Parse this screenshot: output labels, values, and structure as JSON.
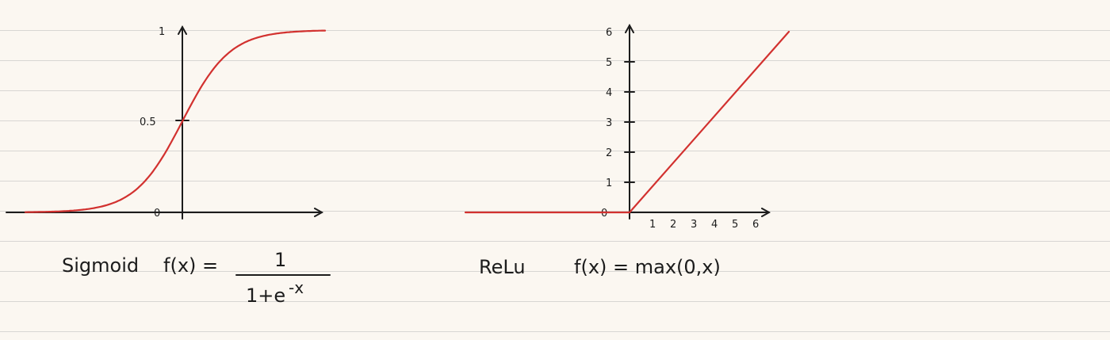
{
  "colors": {
    "curve": "#d2312f",
    "axis": "#1c1c1c",
    "paper": "#fbf7f1",
    "rule": "#d8d6d3"
  },
  "chart_data": [
    {
      "type": "line",
      "function": "sigmoid",
      "x": [
        -6,
        -5,
        -4,
        -3,
        -2,
        -1,
        0,
        1,
        2,
        3,
        4,
        5,
        6
      ],
      "series": [
        {
          "values": [
            0.0025,
            0.0067,
            0.018,
            0.047,
            0.12,
            0.27,
            0.5,
            0.73,
            0.88,
            0.953,
            0.982,
            0.993,
            0.9975
          ]
        }
      ],
      "xlim": [
        -6.6,
        6
      ],
      "ylim": [
        0,
        1
      ],
      "y_ticks": [
        "0",
        "0.5",
        "1"
      ],
      "formula": {
        "name": "Sigmoid",
        "lhs": "f(x) =",
        "numerator": "1",
        "denominator": "1+e",
        "exponent": "-x"
      }
    },
    {
      "type": "line",
      "function": "relu",
      "x": [
        -6,
        -5,
        -4,
        -3,
        -2,
        -1,
        0,
        1,
        2,
        3,
        4,
        5,
        6
      ],
      "series": [
        {
          "values": [
            0,
            0,
            0,
            0,
            0,
            0,
            0,
            1,
            2,
            3,
            4,
            5,
            6
          ]
        }
      ],
      "xlim": [
        -6,
        6
      ],
      "ylim": [
        0,
        6
      ],
      "y_ticks": [
        "0",
        "1",
        "2",
        "3",
        "4",
        "5",
        "6"
      ],
      "x_ticks": [
        "1",
        "2",
        "3",
        "4",
        "5",
        "6"
      ],
      "formula": {
        "name": "ReLu",
        "text": "f(x) = max(0,x)"
      }
    }
  ]
}
